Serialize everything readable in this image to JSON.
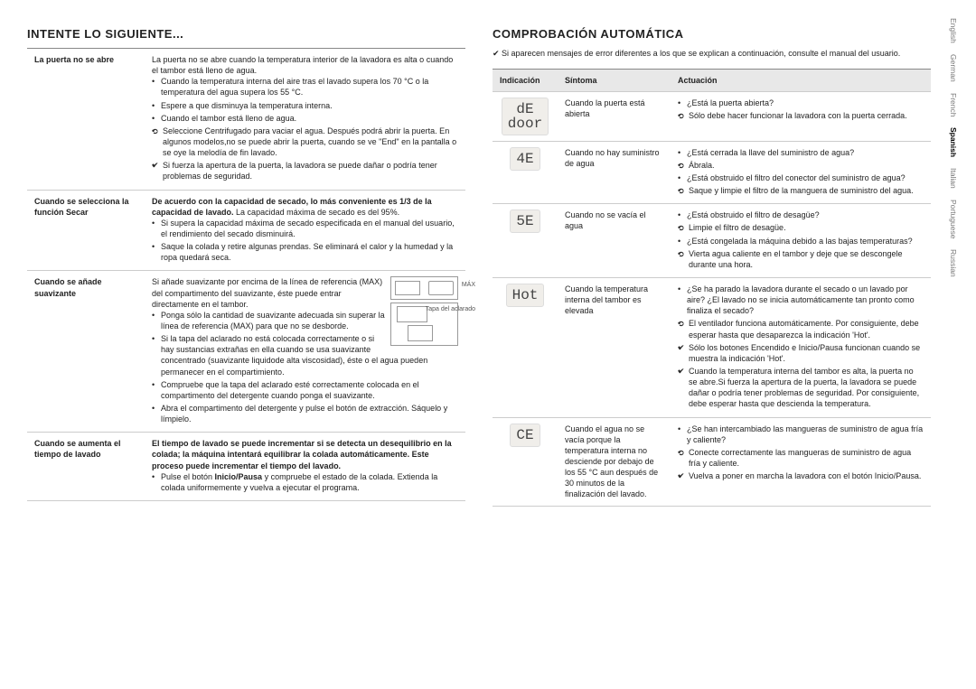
{
  "languages": {
    "items": [
      "English",
      "German",
      "French",
      "Spanish",
      "Italian",
      "Portuguese",
      "Russian"
    ],
    "activeIndex": 3
  },
  "left": {
    "heading": "INTENTE LO SIGUIENTE...",
    "rows": [
      {
        "label": "La puerta no se abre",
        "intro": "La puerta no se abre cuando la temperatura interior de la lavadora es alta o cuando el tambor está lleno de agua.",
        "bullets": [
          "Cuando la temperatura interna del aire tras el lavado supera los 70 °C o la temperatura del agua supera los 55 °C.",
          "__plain__Espere a que disminuya la temperatura interna.",
          "Cuando el tambor está lleno de agua.",
          "__sub__Seleccione Centrifugado para vaciar el agua. Después podrá abrir la puerta. En algunos modelos,no se puede abrir la puerta, cuando se ve \"End\" en la pantalla o se oye la melodía de fin lavado.",
          "__check__Si fuerza la apertura de la puerta, la lavadora se puede dañar o podría tener problemas de seguridad."
        ]
      },
      {
        "label": "Cuando se selecciona la función Secar",
        "intro_html": "De acuerdo con la capacidad de secado, lo más conveniente es 1/3 de la capacidad de lavado.",
        "intro_tail": " La capacidad máxima de secado es del 95%.",
        "bullets": [
          "Si supera la capacidad máxima de secado especificada en el manual del usuario, el rendimiento del secado disminuirá.",
          "__plain__Saque la colada y retire algunas prendas. Se eliminará el calor y la humedad y la ropa quedará seca."
        ]
      },
      {
        "label": "Cuando se añade suavizante",
        "diagram": {
          "label1": "MÁX",
          "label2": "Tapa del aclarado"
        },
        "pre": "Si añade suavizante por encima de la línea de referencia (MAX) del compartimento del suavizante, éste puede entrar directamente en el tambor.",
        "bullets": [
          "Ponga sólo la cantidad de suavizante adecuada sin superar la línea de referencia (MAX) para que no se desborde.",
          "__plain__Si la tapa del aclarado no está colocada correctamente o si hay sustancias extrañas en ella cuando se usa suavizante concentrado (suavizante liquidode alta viscosidad), éste o el agua pueden permanecer en el compartimiento.",
          "Compruebe que la tapa del aclarado esté correctamente colocada en el compartimento del detergente cuando ponga el suavizante.",
          "Abra el compartimento del detergente y pulse el botón de extracción. Sáquelo y límpielo."
        ]
      },
      {
        "label": "Cuando se aumenta el tiempo de lavado",
        "intro_html": "El tiempo de lavado se puede incrementar si se detecta un desequilibrio en la colada; la máquina intentará equilibrar la colada automáticamente. Este proceso puede incrementar el tiempo del lavado.",
        "bullets": [
          "Pulse el botón __b__Inicio/Pausa__b__ y compruebe el estado de la colada. Extienda la colada uniformemente y vuelva a ejecutar el programa."
        ]
      }
    ]
  },
  "right": {
    "heading": "COMPROBACIÓN AUTOMÁTICA",
    "intro": "Si aparecen mensajes de error diferentes a los que se explican a continuación, consulte el manual del usuario.",
    "headers": {
      "c1": "Indicación",
      "c2": "Síntoma",
      "c3": "Actuación"
    },
    "rows": [
      {
        "ind": "dE\ndoor",
        "symptom": "Cuando la puerta está abierta",
        "lines": [
          "¿Está la puerta abierta?",
          "__sub__Sólo debe hacer funcionar la lavadora con la puerta cerrada."
        ]
      },
      {
        "ind": "4E",
        "symptom": "Cuando no hay suministro de agua",
        "lines": [
          "¿Está cerrada la llave del suministro de agua?",
          "__sub__Ábrala.",
          "¿Está obstruido el filtro del conector del suministro de agua?",
          "__sub__Saque y limpie el filtro de la manguera de suministro del agua."
        ]
      },
      {
        "ind": "5E",
        "symptom": "Cuando no se vacía el agua",
        "lines": [
          "¿Está obstruido el filtro de desagüe?",
          "__sub__Limpie el filtro de desagüe.",
          "¿Está congelada la máquina debido a las bajas temperaturas?",
          "__sub__Vierta agua caliente en el tambor y deje que se descongele durante una hora."
        ]
      },
      {
        "ind": "Hot",
        "symptom": "Cuando la temperatura interna del tambor es elevada",
        "lines": [
          "¿Se ha parado la lavadora durante el secado o un lavado por aire? ¿El lavado no se inicia automáticamente tan pronto como finaliza el secado?",
          "__sub__El ventilador funciona automáticamente. Por consiguiente, debe esperar hasta que desaparezca la indicación 'Hot'.",
          "__check__Sólo los botones Encendido e Inicio/Pausa funcionan cuando se muestra la indicación 'Hot'.",
          "__check__Cuando la temperatura interna del tambor es alta, la puerta no se abre.Si fuerza la apertura de la puerta, la lavadora se puede dañar o podría tener problemas de seguridad. Por consiguiente, debe esperar hasta que descienda la temperatura."
        ]
      },
      {
        "ind": "CE",
        "symptom": "Cuando el agua no se vacía porque la temperatura interna no desciende por debajo de los 55 °C aun después de 30 minutos de la finalización del lavado.",
        "lines": [
          "¿Se han intercambiado las mangueras de suministro de agua fría y caliente?",
          "__sub__Conecte correctamente las mangueras de suministro de agua fría y caliente.",
          "__check__Vuelva a poner en marcha la lavadora con el botón Inicio/Pausa."
        ]
      }
    ]
  }
}
